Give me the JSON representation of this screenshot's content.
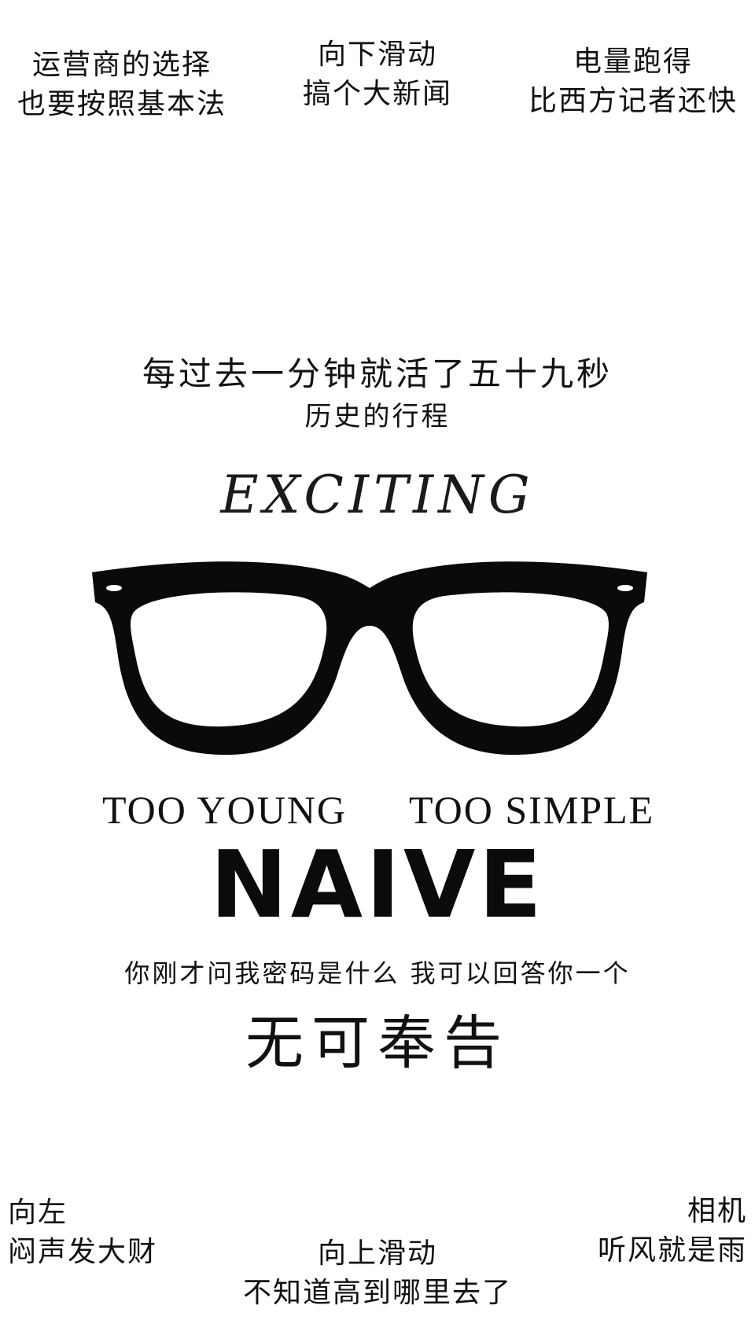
{
  "top": {
    "carrier": {
      "line1": "运营商的选择",
      "line2": "也要按照基本法"
    },
    "swipe_down": {
      "line1": "向下滑动",
      "line2": "搞个大新闻"
    },
    "battery": {
      "line1": "电量跑得",
      "line2": "比西方记者还快"
    }
  },
  "middle": {
    "minute_line": "每过去一分钟就活了五十九秒",
    "history_line": "历史的行程",
    "exciting": "EXCITING",
    "glasses_icon": "glasses-icon",
    "too_young": "TOO YOUNG",
    "too_simple": "TOO SIMPLE",
    "naive": "NAIVE",
    "password_line": "你刚才问我密码是什么 我可以回答你一个",
    "no_comment": "无可奉告"
  },
  "bottom": {
    "left": {
      "line1": "向左",
      "line2": "闷声发大财"
    },
    "camera": {
      "line1": "相机",
      "line2": "听风就是雨"
    },
    "swipe_up": {
      "line1": "向上滑动",
      "line2": "不知道高到哪里去了"
    }
  },
  "colors": {
    "background": "#ffffff",
    "ink": "#111111"
  }
}
